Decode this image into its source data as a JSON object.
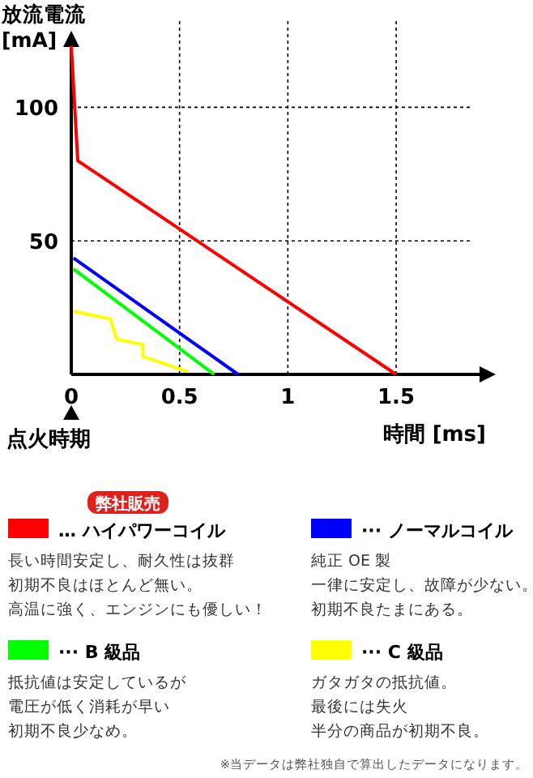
{
  "chart_data": {
    "type": "line",
    "ylabel": "放流電流 [mA]",
    "xlabel": "時間 [ms]",
    "xlim": [
      0,
      1.9
    ],
    "ylim": [
      0,
      125
    ],
    "xticks": [
      0,
      0.5,
      1,
      1.5
    ],
    "yticks": [
      50,
      100
    ],
    "grid": true,
    "line_style": "solid",
    "legend": "bottom",
    "series": [
      {
        "name": "… ハイパワーコイル",
        "color": "#ff0000",
        "x": [
          0,
          0.03,
          1.5
        ],
        "values": [
          123,
          80,
          0
        ]
      },
      {
        "name": "··· ノーマルコイル",
        "color": "#0000ff",
        "x": [
          0.01,
          0.77
        ],
        "values": [
          43.6,
          0
        ]
      },
      {
        "name": "··· B 級品",
        "color": "#00ff00",
        "x": [
          0.01,
          0.66
        ],
        "values": [
          39.5,
          0
        ]
      },
      {
        "name": "··· C 級品",
        "color": "#ffff00",
        "x": [
          0.01,
          0.18,
          0.21,
          0.33,
          0.33,
          0.54
        ],
        "values": [
          23.6,
          20.8,
          13.2,
          11.1,
          6.7,
          1
        ]
      }
    ],
    "annotations": [
      "点火時期",
      "弊社販売",
      "長い時間安定し、耐久性は抜群",
      "初期不良はほとんど無い。",
      "高温に強く、エンジンにも優しい！",
      "純正 OE 製",
      "一律に安定し、故障が少ない。",
      "初期不良たまにある。",
      "抵抗値は安定しているが",
      "電圧が低く消耗が早い",
      "初期不良少なめ。",
      "ガタガタの抵抗値。",
      "最後には失火",
      "半分の商品が初期不良。",
      "※当データは弊社独自で算出したデータになります。"
    ]
  }
}
